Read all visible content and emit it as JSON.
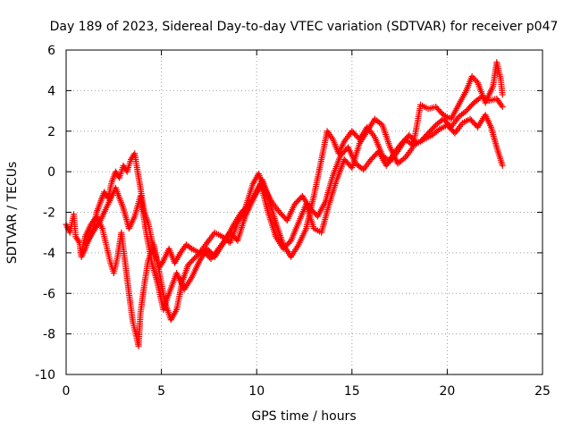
{
  "chart_data": {
    "type": "scatter",
    "title": "Day 189 of 2023, Sidereal Day-to-day VTEC variation (SDTVAR) for receiver p047",
    "xlabel": "GPS time / hours",
    "ylabel": "SDTVAR / TECUs",
    "xlim": [
      0,
      25
    ],
    "ylim": [
      -10,
      6
    ],
    "xticks": [
      "0",
      "5",
      "10",
      "15",
      "20",
      "25"
    ],
    "yticks": [
      "-10",
      "-8",
      "-6",
      "-4",
      "-2",
      "0",
      "2",
      "4",
      "6"
    ],
    "grid": true,
    "marker": "plus",
    "marker_color": "#ff0000",
    "series": [
      {
        "points": [
          [
            0.0,
            -2.6
          ],
          [
            0.2,
            -3.0
          ],
          [
            0.4,
            -2.1
          ],
          [
            0.5,
            -3.2
          ],
          [
            0.7,
            -3.5
          ],
          [
            0.8,
            -4.2
          ],
          [
            1.0,
            -3.8
          ],
          [
            1.2,
            -3.3
          ],
          [
            1.4,
            -2.9
          ],
          [
            1.6,
            -2.0
          ],
          [
            1.8,
            -1.5
          ],
          [
            2.0,
            -1.0
          ],
          [
            2.2,
            -1.3
          ],
          [
            2.4,
            -0.5
          ],
          [
            2.6,
            0.0
          ],
          [
            2.8,
            -0.3
          ],
          [
            3.0,
            0.3
          ],
          [
            3.2,
            0.0
          ],
          [
            3.4,
            0.6
          ],
          [
            3.6,
            0.9
          ],
          [
            3.7,
            0.3
          ],
          [
            3.9,
            -0.8
          ],
          [
            4.1,
            -2.0
          ],
          [
            4.3,
            -2.5
          ],
          [
            4.5,
            -3.4
          ],
          [
            4.7,
            -4.2
          ],
          [
            4.9,
            -4.7
          ],
          [
            5.1,
            -4.4
          ],
          [
            5.4,
            -3.8
          ],
          [
            5.7,
            -4.5
          ],
          [
            6.0,
            -4.0
          ],
          [
            6.3,
            -3.6
          ],
          [
            6.6,
            -3.8
          ],
          [
            7.0,
            -4.0
          ],
          [
            7.4,
            -3.5
          ],
          [
            7.8,
            -3.0
          ],
          [
            8.2,
            -3.2
          ],
          [
            8.6,
            -3.5
          ],
          [
            9.0,
            -2.5
          ],
          [
            9.4,
            -1.8
          ],
          [
            9.8,
            -0.6
          ],
          [
            10.1,
            -0.1
          ],
          [
            10.4,
            -0.8
          ],
          [
            10.8,
            -1.5
          ],
          [
            11.2,
            -2.0
          ],
          [
            11.6,
            -2.4
          ],
          [
            12.0,
            -1.6
          ],
          [
            12.4,
            -1.2
          ],
          [
            12.8,
            -1.8
          ],
          [
            13.2,
            -2.2
          ],
          [
            13.6,
            -1.5
          ],
          [
            14.0,
            -0.2
          ],
          [
            14.4,
            0.8
          ],
          [
            14.8,
            1.2
          ],
          [
            15.2,
            0.4
          ],
          [
            15.6,
            0.1
          ],
          [
            16.0,
            0.6
          ],
          [
            16.4,
            1.0
          ],
          [
            16.8,
            0.3
          ],
          [
            17.2,
            0.9
          ],
          [
            17.6,
            1.4
          ],
          [
            18.0,
            1.8
          ],
          [
            18.4,
            1.4
          ],
          [
            18.8,
            1.6
          ],
          [
            19.2,
            1.8
          ],
          [
            19.6,
            2.1
          ],
          [
            20.0,
            2.3
          ],
          [
            20.4,
            1.9
          ],
          [
            20.8,
            2.4
          ],
          [
            21.2,
            2.6
          ],
          [
            21.6,
            2.2
          ],
          [
            22.0,
            2.8
          ],
          [
            22.3,
            2.2
          ],
          [
            22.6,
            1.2
          ],
          [
            22.9,
            0.3
          ]
        ]
      },
      {
        "points": [
          [
            0.8,
            -4.0
          ],
          [
            1.0,
            -3.2
          ],
          [
            1.3,
            -2.6
          ],
          [
            1.6,
            -2.2
          ],
          [
            1.9,
            -2.8
          ],
          [
            2.1,
            -3.6
          ],
          [
            2.3,
            -4.4
          ],
          [
            2.5,
            -5.0
          ],
          [
            2.7,
            -4.2
          ],
          [
            2.9,
            -3.0
          ],
          [
            3.1,
            -4.5
          ],
          [
            3.3,
            -6.0
          ],
          [
            3.5,
            -7.4
          ],
          [
            3.7,
            -8.2
          ],
          [
            3.8,
            -8.6
          ],
          [
            3.9,
            -7.0
          ],
          [
            4.1,
            -5.6
          ],
          [
            4.3,
            -4.4
          ],
          [
            4.6,
            -3.6
          ],
          [
            4.9,
            -5.0
          ],
          [
            5.2,
            -6.5
          ],
          [
            5.5,
            -7.3
          ],
          [
            5.8,
            -6.8
          ],
          [
            6.1,
            -5.4
          ],
          [
            6.4,
            -4.6
          ],
          [
            6.8,
            -4.2
          ],
          [
            7.2,
            -3.9
          ],
          [
            7.6,
            -4.3
          ],
          [
            8.0,
            -3.8
          ],
          [
            8.4,
            -3.3
          ],
          [
            8.8,
            -2.6
          ],
          [
            9.2,
            -2.0
          ],
          [
            9.6,
            -1.6
          ],
          [
            10.0,
            -1.0
          ],
          [
            10.3,
            -0.4
          ],
          [
            10.6,
            -1.2
          ],
          [
            11.0,
            -2.5
          ],
          [
            11.4,
            -3.6
          ],
          [
            11.8,
            -4.2
          ],
          [
            12.2,
            -3.6
          ],
          [
            12.6,
            -2.8
          ],
          [
            13.0,
            -1.2
          ],
          [
            13.4,
            0.6
          ],
          [
            13.7,
            2.0
          ],
          [
            14.0,
            1.6
          ],
          [
            14.3,
            0.9
          ],
          [
            14.6,
            1.5
          ],
          [
            15.0,
            2.0
          ],
          [
            15.4,
            1.6
          ],
          [
            15.8,
            2.2
          ],
          [
            16.2,
            1.7
          ],
          [
            16.6,
            0.8
          ],
          [
            17.0,
            0.5
          ],
          [
            17.4,
            1.0
          ],
          [
            17.8,
            1.6
          ],
          [
            18.2,
            1.3
          ],
          [
            18.6,
            1.5
          ],
          [
            19.0,
            1.9
          ],
          [
            19.4,
            2.3
          ],
          [
            19.8,
            2.6
          ],
          [
            20.2,
            2.2
          ],
          [
            20.6,
            2.7
          ],
          [
            21.0,
            3.0
          ],
          [
            21.4,
            3.4
          ],
          [
            21.8,
            3.7
          ],
          [
            22.2,
            3.5
          ],
          [
            22.6,
            3.6
          ],
          [
            22.9,
            3.2
          ]
        ]
      },
      {
        "points": [
          [
            1.0,
            -3.6
          ],
          [
            1.4,
            -3.0
          ],
          [
            1.8,
            -2.4
          ],
          [
            2.2,
            -1.6
          ],
          [
            2.6,
            -0.8
          ],
          [
            3.0,
            -1.8
          ],
          [
            3.3,
            -2.8
          ],
          [
            3.6,
            -2.2
          ],
          [
            3.9,
            -1.2
          ],
          [
            4.2,
            -3.0
          ],
          [
            4.5,
            -4.5
          ],
          [
            4.8,
            -5.5
          ],
          [
            5.1,
            -6.8
          ],
          [
            5.4,
            -6.0
          ],
          [
            5.8,
            -5.0
          ],
          [
            6.2,
            -5.8
          ],
          [
            6.6,
            -5.2
          ],
          [
            7.0,
            -4.4
          ],
          [
            7.4,
            -3.8
          ],
          [
            7.8,
            -4.2
          ],
          [
            8.2,
            -3.6
          ],
          [
            8.6,
            -3.0
          ],
          [
            9.0,
            -3.4
          ],
          [
            9.4,
            -2.2
          ],
          [
            9.8,
            -1.4
          ],
          [
            10.2,
            -0.6
          ],
          [
            10.6,
            -2.0
          ],
          [
            11.0,
            -3.2
          ],
          [
            11.4,
            -3.8
          ],
          [
            11.8,
            -3.4
          ],
          [
            12.2,
            -2.5
          ],
          [
            12.6,
            -1.6
          ],
          [
            13.0,
            -2.8
          ],
          [
            13.4,
            -3.0
          ],
          [
            13.8,
            -1.6
          ],
          [
            14.2,
            -0.4
          ],
          [
            14.6,
            0.6
          ],
          [
            15.0,
            0.2
          ],
          [
            15.4,
            1.4
          ],
          [
            15.8,
            2.0
          ],
          [
            16.2,
            2.6
          ],
          [
            16.6,
            2.3
          ],
          [
            17.0,
            1.2
          ],
          [
            17.4,
            0.4
          ],
          [
            17.8,
            0.7
          ],
          [
            18.2,
            1.2
          ],
          [
            18.6,
            3.3
          ],
          [
            19.0,
            3.1
          ],
          [
            19.4,
            3.2
          ],
          [
            19.8,
            2.8
          ],
          [
            20.2,
            2.6
          ],
          [
            20.6,
            3.3
          ],
          [
            21.0,
            4.0
          ],
          [
            21.3,
            4.7
          ],
          [
            21.6,
            4.4
          ],
          [
            22.0,
            3.4
          ],
          [
            22.4,
            4.2
          ],
          [
            22.6,
            5.4
          ],
          [
            22.8,
            4.6
          ],
          [
            22.9,
            3.8
          ]
        ]
      }
    ]
  }
}
